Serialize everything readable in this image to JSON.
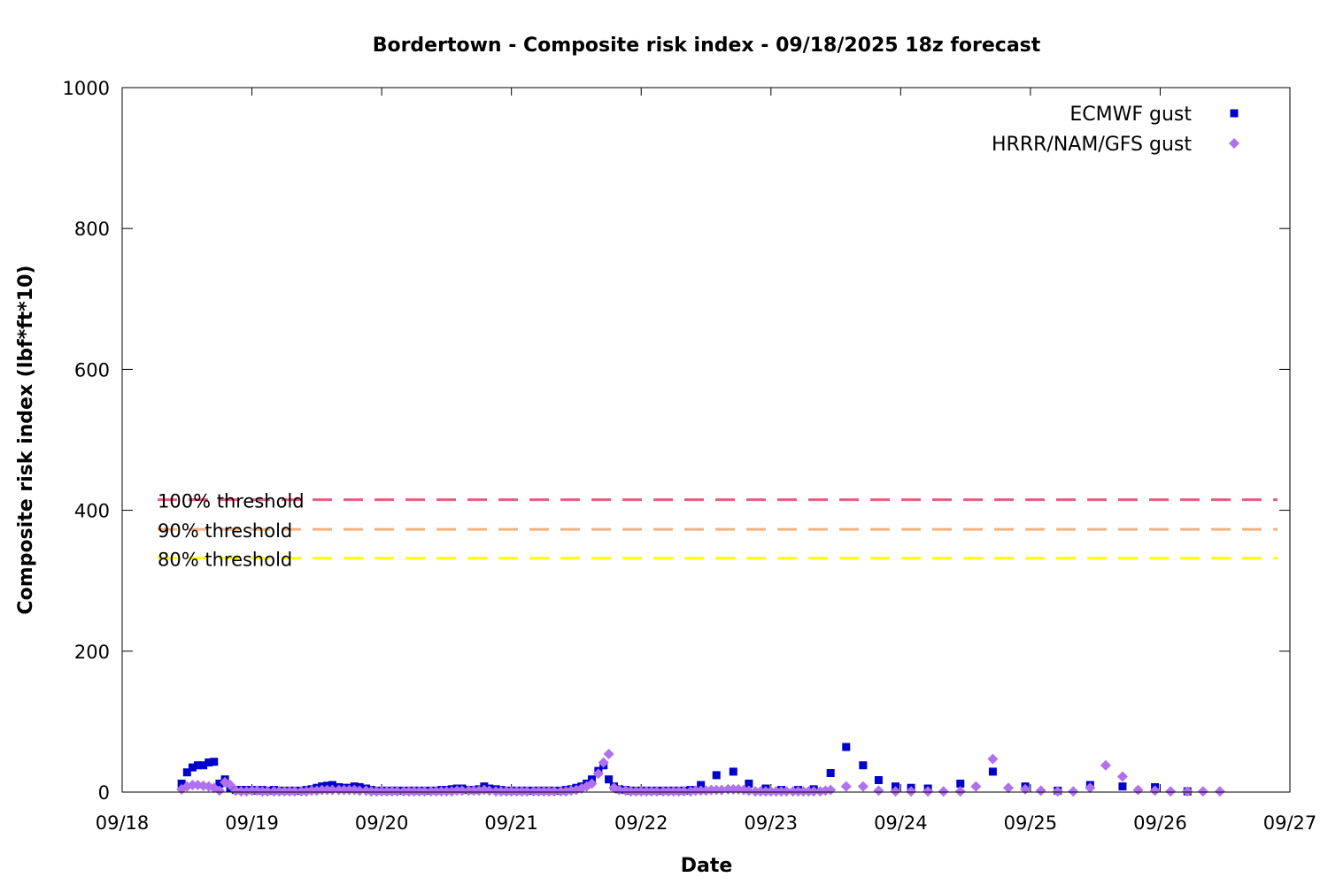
{
  "chart_data": {
    "type": "scatter",
    "title": "Bordertown - Composite risk index - 09/18/2025 18z forecast",
    "xlabel": "Date",
    "ylabel": "Composite risk index (lbf*ft*10)",
    "x_unit": "days since 09/18 00z",
    "xlim": [
      0,
      9
    ],
    "ylim": [
      0,
      1000
    ],
    "x_ticks": [
      {
        "value": 0,
        "label": "09/18"
      },
      {
        "value": 1,
        "label": "09/19"
      },
      {
        "value": 2,
        "label": "09/20"
      },
      {
        "value": 3,
        "label": "09/21"
      },
      {
        "value": 4,
        "label": "09/22"
      },
      {
        "value": 5,
        "label": "09/23"
      },
      {
        "value": 6,
        "label": "09/24"
      },
      {
        "value": 7,
        "label": "09/25"
      },
      {
        "value": 8,
        "label": "09/26"
      },
      {
        "value": 9,
        "label": "09/27"
      }
    ],
    "y_ticks": [
      {
        "value": 0,
        "label": "0"
      },
      {
        "value": 200,
        "label": "200"
      },
      {
        "value": 400,
        "label": "400"
      },
      {
        "value": 600,
        "label": "600"
      },
      {
        "value": 800,
        "label": "800"
      },
      {
        "value": 1000,
        "label": "1000"
      }
    ],
    "grid": false,
    "legend_position": "top-right",
    "thresholds": [
      {
        "label": "100% threshold",
        "value": 415,
        "color": "#e06080"
      },
      {
        "label": "90% threshold",
        "value": 373,
        "color": "#f5b27e"
      },
      {
        "label": "80% threshold",
        "value": 332,
        "color": "#ffff00"
      }
    ],
    "series": [
      {
        "name": "ECMWF gust",
        "marker": "square",
        "color": "#0000cc",
        "points": [
          [
            0.458,
            12
          ],
          [
            0.5,
            28
          ],
          [
            0.542,
            35
          ],
          [
            0.583,
            38
          ],
          [
            0.625,
            38
          ],
          [
            0.667,
            42
          ],
          [
            0.708,
            43
          ],
          [
            0.75,
            12
          ],
          [
            0.792,
            18
          ],
          [
            0.833,
            5
          ],
          [
            0.875,
            3
          ],
          [
            0.917,
            3
          ],
          [
            0.958,
            3
          ],
          [
            1.0,
            3
          ],
          [
            1.04,
            2
          ],
          [
            1.08,
            3
          ],
          [
            1.12,
            2
          ],
          [
            1.17,
            3
          ],
          [
            1.21,
            2
          ],
          [
            1.25,
            2
          ],
          [
            1.29,
            2
          ],
          [
            1.33,
            2
          ],
          [
            1.38,
            2
          ],
          [
            1.42,
            3
          ],
          [
            1.46,
            4
          ],
          [
            1.5,
            6
          ],
          [
            1.54,
            8
          ],
          [
            1.58,
            9
          ],
          [
            1.62,
            10
          ],
          [
            1.67,
            7
          ],
          [
            1.71,
            6
          ],
          [
            1.75,
            6
          ],
          [
            1.79,
            8
          ],
          [
            1.83,
            7
          ],
          [
            1.88,
            5
          ],
          [
            1.92,
            3
          ],
          [
            1.96,
            2
          ],
          [
            2.0,
            2
          ],
          [
            2.04,
            2
          ],
          [
            2.08,
            2
          ],
          [
            2.12,
            2
          ],
          [
            2.17,
            2
          ],
          [
            2.21,
            2
          ],
          [
            2.25,
            2
          ],
          [
            2.29,
            2
          ],
          [
            2.33,
            2
          ],
          [
            2.38,
            2
          ],
          [
            2.42,
            2
          ],
          [
            2.46,
            3
          ],
          [
            2.5,
            3
          ],
          [
            2.54,
            4
          ],
          [
            2.58,
            5
          ],
          [
            2.62,
            5
          ],
          [
            2.67,
            3
          ],
          [
            2.71,
            3
          ],
          [
            2.75,
            4
          ],
          [
            2.79,
            8
          ],
          [
            2.83,
            5
          ],
          [
            2.88,
            4
          ],
          [
            2.92,
            3
          ],
          [
            2.96,
            2
          ],
          [
            3.0,
            2
          ],
          [
            3.04,
            2
          ],
          [
            3.08,
            2
          ],
          [
            3.12,
            2
          ],
          [
            3.17,
            2
          ],
          [
            3.21,
            2
          ],
          [
            3.25,
            2
          ],
          [
            3.29,
            2
          ],
          [
            3.33,
            2
          ],
          [
            3.38,
            2
          ],
          [
            3.42,
            3
          ],
          [
            3.46,
            4
          ],
          [
            3.5,
            6
          ],
          [
            3.54,
            8
          ],
          [
            3.58,
            12
          ],
          [
            3.62,
            18
          ],
          [
            3.67,
            30
          ],
          [
            3.71,
            38
          ],
          [
            3.75,
            18
          ],
          [
            3.79,
            8
          ],
          [
            3.83,
            4
          ],
          [
            3.88,
            3
          ],
          [
            3.92,
            2
          ],
          [
            3.96,
            2
          ],
          [
            4.0,
            2
          ],
          [
            4.04,
            2
          ],
          [
            4.08,
            2
          ],
          [
            4.12,
            2
          ],
          [
            4.17,
            2
          ],
          [
            4.21,
            2
          ],
          [
            4.25,
            2
          ],
          [
            4.29,
            2
          ],
          [
            4.33,
            2
          ],
          [
            4.38,
            3
          ],
          [
            4.46,
            10
          ],
          [
            4.58,
            24
          ],
          [
            4.71,
            29
          ],
          [
            4.83,
            12
          ],
          [
            4.96,
            5
          ],
          [
            5.08,
            3
          ],
          [
            5.21,
            3
          ],
          [
            5.33,
            4
          ],
          [
            5.46,
            27
          ],
          [
            5.58,
            64
          ],
          [
            5.71,
            38
          ],
          [
            5.83,
            17
          ],
          [
            5.96,
            8
          ],
          [
            6.08,
            6
          ],
          [
            6.21,
            5
          ],
          [
            6.46,
            12
          ],
          [
            6.71,
            29
          ],
          [
            6.96,
            8
          ],
          [
            7.21,
            2
          ],
          [
            7.46,
            10
          ],
          [
            7.71,
            8
          ],
          [
            7.96,
            7
          ],
          [
            8.21,
            1
          ]
        ]
      },
      {
        "name": "HRRR/NAM/GFS gust",
        "marker": "diamond",
        "color": "#b070f0",
        "points": [
          [
            0.458,
            4
          ],
          [
            0.5,
            8
          ],
          [
            0.542,
            10
          ],
          [
            0.583,
            10
          ],
          [
            0.625,
            9
          ],
          [
            0.667,
            8
          ],
          [
            0.708,
            6
          ],
          [
            0.75,
            2
          ],
          [
            0.792,
            14
          ],
          [
            0.833,
            10
          ],
          [
            0.875,
            2
          ],
          [
            0.917,
            1
          ],
          [
            0.958,
            1
          ],
          [
            1.0,
            2
          ],
          [
            1.04,
            2
          ],
          [
            1.08,
            1
          ],
          [
            1.12,
            1
          ],
          [
            1.17,
            1
          ],
          [
            1.21,
            1
          ],
          [
            1.25,
            1
          ],
          [
            1.29,
            1
          ],
          [
            1.33,
            1
          ],
          [
            1.38,
            1
          ],
          [
            1.42,
            1
          ],
          [
            1.46,
            2
          ],
          [
            1.5,
            2
          ],
          [
            1.54,
            3
          ],
          [
            1.58,
            3
          ],
          [
            1.62,
            3
          ],
          [
            1.67,
            3
          ],
          [
            1.71,
            3
          ],
          [
            1.75,
            3
          ],
          [
            1.79,
            3
          ],
          [
            1.83,
            2
          ],
          [
            1.88,
            2
          ],
          [
            1.92,
            1
          ],
          [
            1.96,
            1
          ],
          [
            2.0,
            1
          ],
          [
            2.04,
            1
          ],
          [
            2.08,
            1
          ],
          [
            2.12,
            1
          ],
          [
            2.17,
            1
          ],
          [
            2.21,
            1
          ],
          [
            2.25,
            1
          ],
          [
            2.29,
            1
          ],
          [
            2.33,
            1
          ],
          [
            2.38,
            1
          ],
          [
            2.42,
            1
          ],
          [
            2.46,
            1
          ],
          [
            2.5,
            1
          ],
          [
            2.54,
            1
          ],
          [
            2.58,
            2
          ],
          [
            2.62,
            2
          ],
          [
            2.67,
            2
          ],
          [
            2.71,
            2
          ],
          [
            2.75,
            2
          ],
          [
            2.79,
            3
          ],
          [
            2.83,
            2
          ],
          [
            2.88,
            1
          ],
          [
            2.92,
            1
          ],
          [
            2.96,
            1
          ],
          [
            3.0,
            1
          ],
          [
            3.04,
            1
          ],
          [
            3.08,
            1
          ],
          [
            3.12,
            1
          ],
          [
            3.17,
            1
          ],
          [
            3.21,
            1
          ],
          [
            3.25,
            1
          ],
          [
            3.29,
            1
          ],
          [
            3.33,
            1
          ],
          [
            3.38,
            1
          ],
          [
            3.42,
            1
          ],
          [
            3.46,
            2
          ],
          [
            3.5,
            3
          ],
          [
            3.54,
            5
          ],
          [
            3.58,
            8
          ],
          [
            3.62,
            12
          ],
          [
            3.67,
            26
          ],
          [
            3.71,
            42
          ],
          [
            3.75,
            54
          ],
          [
            3.79,
            6
          ],
          [
            3.83,
            3
          ],
          [
            3.88,
            2
          ],
          [
            3.92,
            1
          ],
          [
            3.96,
            1
          ],
          [
            4.0,
            1
          ],
          [
            4.04,
            1
          ],
          [
            4.08,
            1
          ],
          [
            4.12,
            1
          ],
          [
            4.17,
            1
          ],
          [
            4.21,
            1
          ],
          [
            4.25,
            1
          ],
          [
            4.29,
            1
          ],
          [
            4.33,
            1
          ],
          [
            4.38,
            1
          ],
          [
            4.42,
            2
          ],
          [
            4.46,
            2
          ],
          [
            4.5,
            2
          ],
          [
            4.54,
            3
          ],
          [
            4.58,
            3
          ],
          [
            4.62,
            3
          ],
          [
            4.67,
            4
          ],
          [
            4.71,
            4
          ],
          [
            4.75,
            4
          ],
          [
            4.79,
            3
          ],
          [
            4.83,
            2
          ],
          [
            4.88,
            1
          ],
          [
            4.92,
            1
          ],
          [
            4.96,
            1
          ],
          [
            5.0,
            1
          ],
          [
            5.04,
            1
          ],
          [
            5.08,
            1
          ],
          [
            5.12,
            1
          ],
          [
            5.17,
            1
          ],
          [
            5.21,
            1
          ],
          [
            5.25,
            1
          ],
          [
            5.29,
            1
          ],
          [
            5.33,
            1
          ],
          [
            5.38,
            1
          ],
          [
            5.42,
            2
          ],
          [
            5.46,
            3
          ],
          [
            5.58,
            8
          ],
          [
            5.71,
            8
          ],
          [
            5.83,
            2
          ],
          [
            5.96,
            1
          ],
          [
            6.08,
            1
          ],
          [
            6.21,
            1
          ],
          [
            6.33,
            1
          ],
          [
            6.46,
            1
          ],
          [
            6.58,
            8
          ],
          [
            6.71,
            47
          ],
          [
            6.83,
            6
          ],
          [
            6.96,
            4
          ],
          [
            7.08,
            2
          ],
          [
            7.21,
            1
          ],
          [
            7.33,
            1
          ],
          [
            7.46,
            6
          ],
          [
            7.58,
            38
          ],
          [
            7.71,
            22
          ],
          [
            7.83,
            3
          ],
          [
            7.96,
            2
          ],
          [
            8.08,
            1
          ],
          [
            8.21,
            1
          ],
          [
            8.33,
            1
          ],
          [
            8.46,
            1
          ]
        ]
      }
    ]
  }
}
